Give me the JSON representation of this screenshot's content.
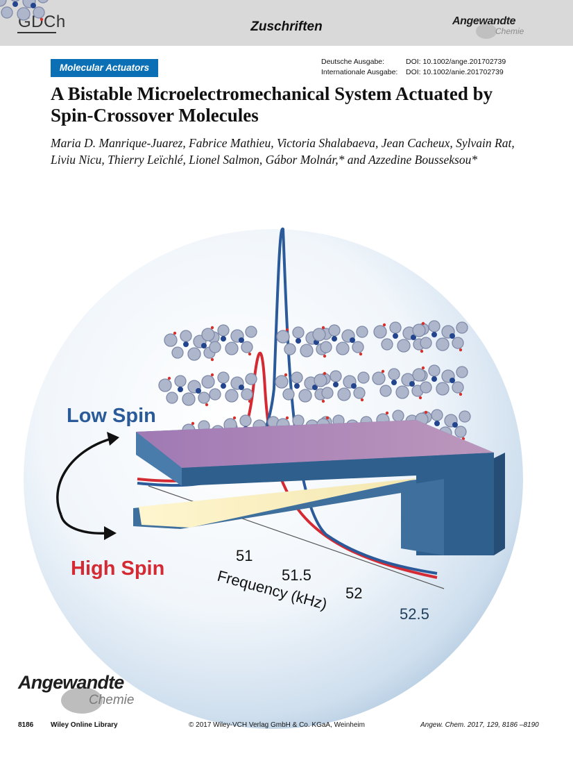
{
  "header": {
    "society_logo": "GDCh",
    "section": "Zuschriften",
    "journal_logo_main": "Angewandte",
    "journal_logo_sub": "Chemie"
  },
  "article": {
    "category": "Molecular Actuators",
    "doi_lines": [
      {
        "label": "Deutsche Ausgabe:",
        "value": "DOI: 10.1002/ange.201702739"
      },
      {
        "label": "Internationale Ausgabe:",
        "value": "DOI: 10.1002/anie.201702739"
      }
    ],
    "title": "A Bistable Microelectromechanical System Actuated by Spin-Crossover Molecules",
    "authors": "Maria D. Manrique-Juarez, Fabrice Mathieu, Victoria Shalabaeva, Jean Cacheux, Sylvain Rat, Liviu Nicu, Thierry Leïchlé, Lionel Salmon, Gábor Molnár,* and Azzedine Bousseksou*"
  },
  "figure": {
    "label_low": "Low Spin",
    "label_high": "High Spin",
    "axis_label": "Frequency (kHz)",
    "ticks": [
      "51",
      "51.5",
      "52",
      "52.5"
    ],
    "colors": {
      "low_spin": "#2a5a99",
      "high_spin": "#d42a33",
      "cantilever": "#3f6f9c",
      "film": "#b07fb8"
    }
  },
  "footer": {
    "logo_main": "Angewandte",
    "logo_sub": "Chemie",
    "page": "8186",
    "library": "Wiley Online Library",
    "copyright": "© 2017 Wiley-VCH Verlag GmbH & Co. KGaA, Weinheim",
    "citation": "Angew. Chem. 2017, 129, 8186 –8190"
  }
}
